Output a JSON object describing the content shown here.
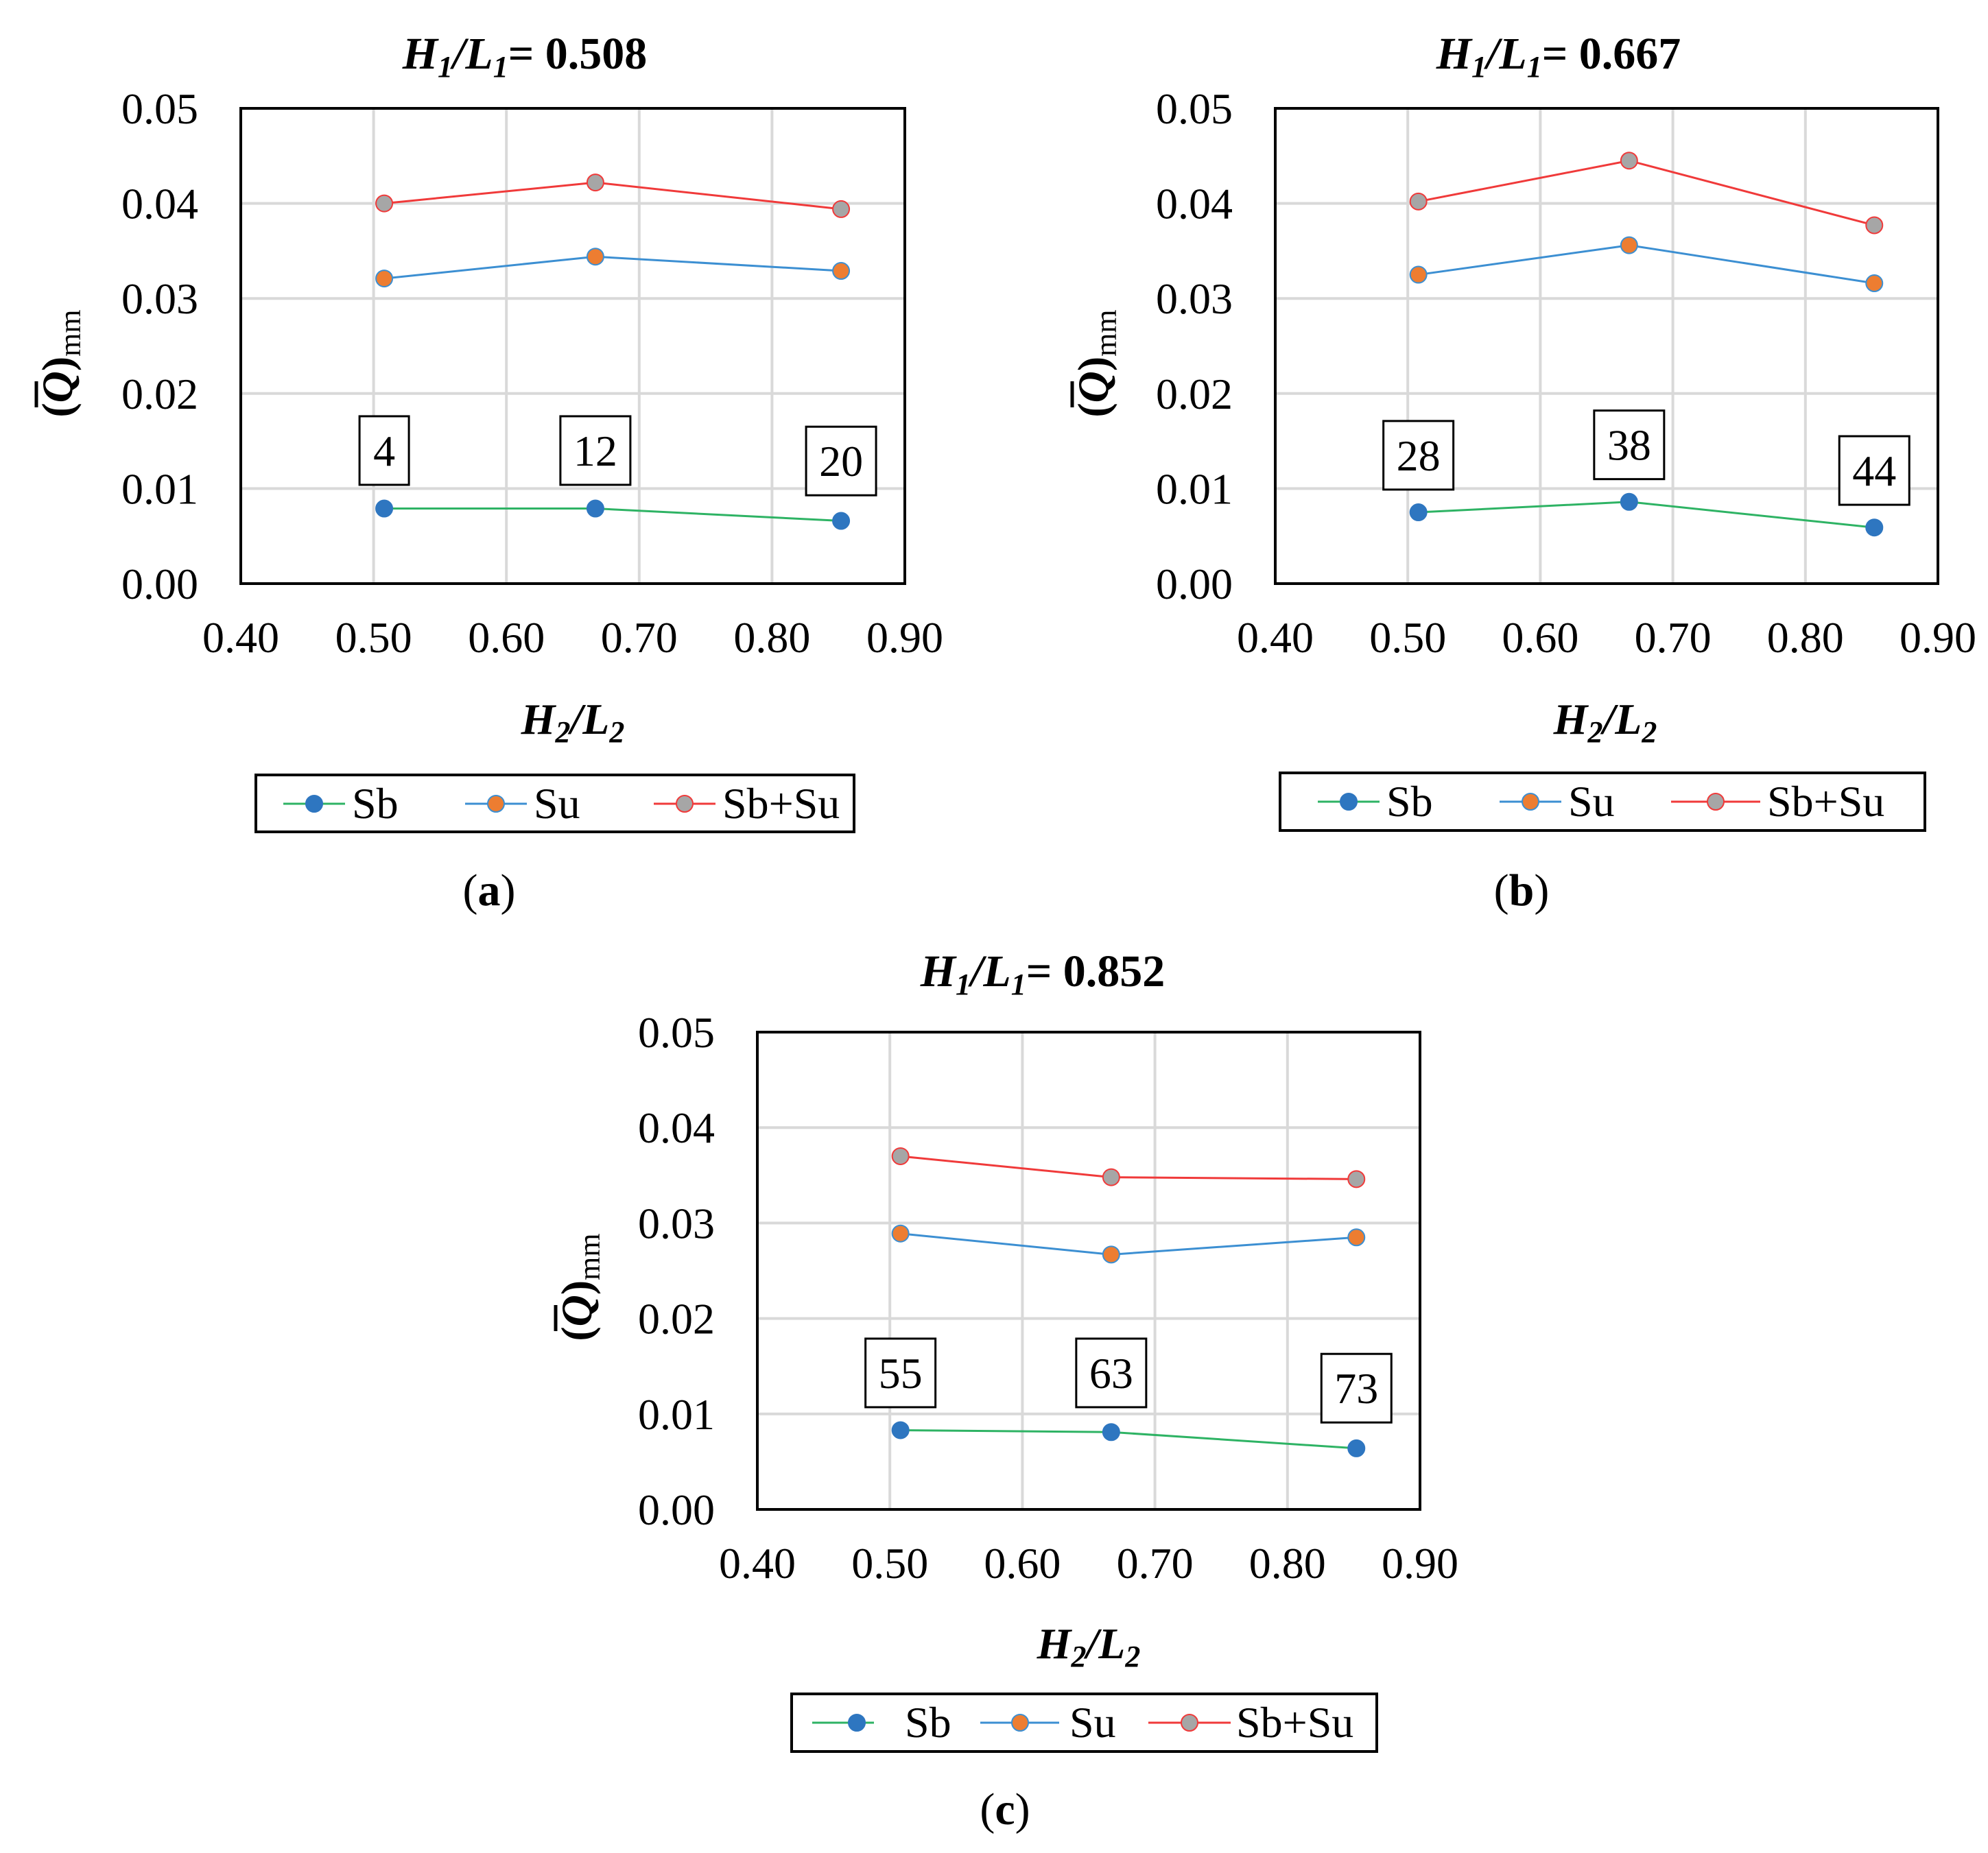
{
  "colors": {
    "sb_line": "#2eb364",
    "sb_marker": "#2e76c0",
    "su_line": "#3c8fd2",
    "su_marker": "#ed7d31",
    "sbsu_line": "#f03a3a",
    "sbsu_marker": "#a6a6a6",
    "grid": "#d9d9d9"
  },
  "chart_data": [
    {
      "type": "line",
      "title_prefix": "H",
      "title_sub1": "1",
      "title_mid": "/L",
      "title_sub2": "1",
      "title_value": "= 0.508",
      "panel_label": "a",
      "xlabel_main": "H",
      "xlabel_sub1": "2",
      "xlabel_mid": "/L",
      "xlabel_sub2": "2",
      "ylabel_main": "Q",
      "ylabel_sub": "mm",
      "xlim": [
        0.4,
        0.9
      ],
      "ylim": [
        0.0,
        0.05
      ],
      "xticks": [
        "0.40",
        "0.50",
        "0.60",
        "0.70",
        "0.80",
        "0.90"
      ],
      "yticks": [
        "0.00",
        "0.01",
        "0.02",
        "0.03",
        "0.04",
        "0.05"
      ],
      "x": [
        0.508,
        0.667,
        0.852
      ],
      "series": [
        {
          "name": "Sb",
          "values": [
            0.0079,
            0.0079,
            0.0066
          ]
        },
        {
          "name": "Su",
          "values": [
            0.0321,
            0.0344,
            0.0329
          ]
        },
        {
          "name": "Sb+Su",
          "values": [
            0.04,
            0.0422,
            0.0394
          ]
        }
      ],
      "annotations": [
        {
          "text": "4",
          "x": 0.508,
          "y": 0.014
        },
        {
          "text": "12",
          "x": 0.667,
          "y": 0.014
        },
        {
          "text": "20",
          "x": 0.852,
          "y": 0.0129
        }
      ]
    },
    {
      "type": "line",
      "title_prefix": "H",
      "title_sub1": "1",
      "title_mid": "/L",
      "title_sub2": "1",
      "title_value": "= 0.667",
      "panel_label": "b",
      "xlabel_main": "H",
      "xlabel_sub1": "2",
      "xlabel_mid": "/L",
      "xlabel_sub2": "2",
      "ylabel_main": "Q",
      "ylabel_sub": "mm",
      "xlim": [
        0.4,
        0.9
      ],
      "ylim": [
        0.0,
        0.05
      ],
      "xticks": [
        "0.40",
        "0.50",
        "0.60",
        "0.70",
        "0.80",
        "0.90"
      ],
      "yticks": [
        "0.00",
        "0.01",
        "0.02",
        "0.03",
        "0.04",
        "0.05"
      ],
      "x": [
        0.508,
        0.667,
        0.852
      ],
      "series": [
        {
          "name": "Sb",
          "values": [
            0.0075,
            0.0086,
            0.0059
          ]
        },
        {
          "name": "Su",
          "values": [
            0.0325,
            0.0356,
            0.0316
          ]
        },
        {
          "name": "Sb+Su",
          "values": [
            0.0402,
            0.0445,
            0.0377
          ]
        }
      ],
      "annotations": [
        {
          "text": "28",
          "x": 0.508,
          "y": 0.0135
        },
        {
          "text": "38",
          "x": 0.667,
          "y": 0.0146
        },
        {
          "text": "44",
          "x": 0.852,
          "y": 0.0119
        }
      ]
    },
    {
      "type": "line",
      "title_prefix": "H",
      "title_sub1": "1",
      "title_mid": "/L",
      "title_sub2": "1",
      "title_value": "= 0.852",
      "panel_label": "c",
      "xlabel_main": "H",
      "xlabel_sub1": "2",
      "xlabel_mid": "/L",
      "xlabel_sub2": "2",
      "ylabel_main": "Q",
      "ylabel_sub": "mm",
      "xlim": [
        0.4,
        0.9
      ],
      "ylim": [
        0.0,
        0.05
      ],
      "xticks": [
        "0.40",
        "0.50",
        "0.60",
        "0.70",
        "0.80",
        "0.90"
      ],
      "yticks": [
        "0.00",
        "0.01",
        "0.02",
        "0.03",
        "0.04",
        "0.05"
      ],
      "x": [
        0.508,
        0.667,
        0.852
      ],
      "series": [
        {
          "name": "Sb",
          "values": [
            0.0083,
            0.0081,
            0.0064
          ]
        },
        {
          "name": "Su",
          "values": [
            0.0289,
            0.0267,
            0.0285
          ]
        },
        {
          "name": "Sb+Su",
          "values": [
            0.037,
            0.0348,
            0.0346
          ]
        }
      ],
      "annotations": [
        {
          "text": "55",
          "x": 0.508,
          "y": 0.0143
        },
        {
          "text": "63",
          "x": 0.667,
          "y": 0.0143
        },
        {
          "text": "73",
          "x": 0.852,
          "y": 0.0127
        }
      ]
    }
  ]
}
